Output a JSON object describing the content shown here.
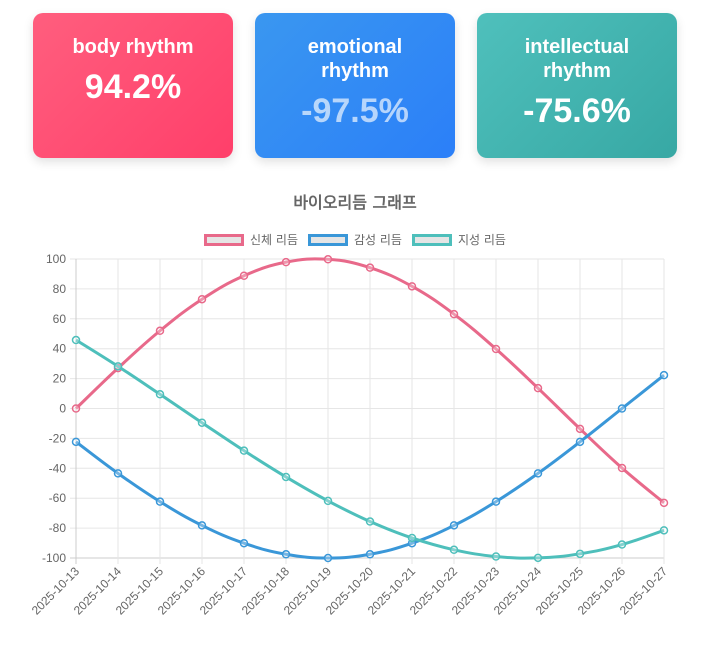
{
  "cards": [
    {
      "label": "body rhythm",
      "value": "94.2%"
    },
    {
      "label": "emotional rhythm",
      "value": "-97.5%"
    },
    {
      "label": "intellectual rhythm",
      "value": "-75.6%"
    }
  ],
  "chart_data": {
    "type": "line",
    "title": "바이오리듬 그래프",
    "xlabel": "",
    "ylabel": "",
    "ylim": [
      -100,
      100
    ],
    "yticks": [
      100,
      80,
      60,
      40,
      20,
      0,
      -20,
      -40,
      -60,
      -80,
      -100
    ],
    "grid": true,
    "legend_position": "top",
    "x": [
      "2025-10-13",
      "2025-10-14",
      "2025-10-15",
      "2025-10-16",
      "2025-10-17",
      "2025-10-18",
      "2025-10-19",
      "2025-10-20",
      "2025-10-21",
      "2025-10-22",
      "2025-10-23",
      "2025-10-24",
      "2025-10-25",
      "2025-10-26",
      "2025-10-27"
    ],
    "series": [
      {
        "name": "신체 리듬",
        "color": "#e8698a",
        "values": [
          0,
          27.0,
          52.0,
          73.1,
          88.8,
          97.9,
          99.8,
          94.2,
          81.7,
          63.1,
          39.8,
          13.6,
          -13.6,
          -39.8,
          -63.1
        ]
      },
      {
        "name": "감성 리듬",
        "color": "#3a97d8",
        "values": [
          -22.3,
          -43.4,
          -62.3,
          -78.2,
          -90.1,
          -97.5,
          -100,
          -97.5,
          -90.1,
          -78.2,
          -62.3,
          -43.4,
          -22.3,
          0,
          22.3
        ]
      },
      {
        "name": "지성 리듬",
        "color": "#4ebfbb",
        "values": [
          45.8,
          28.2,
          9.5,
          -9.5,
          -28.2,
          -45.8,
          -61.8,
          -75.6,
          -86.6,
          -94.5,
          -99.0,
          -99.9,
          -97.2,
          -91.0,
          -81.5
        ]
      }
    ]
  }
}
